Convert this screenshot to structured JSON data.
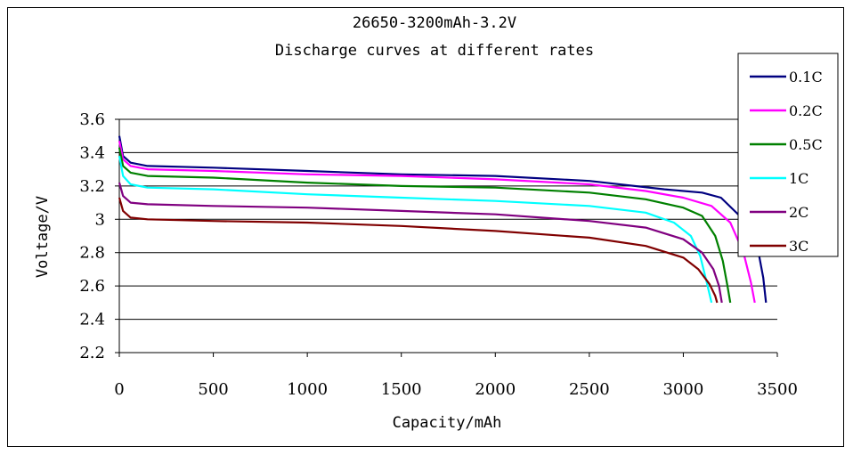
{
  "chart_data": {
    "type": "line",
    "title": "26650-3200mAh-3.2V",
    "subtitle": "Discharge curves at different rates",
    "xlabel": "Capacity/mAh",
    "ylabel": "Voltage/V",
    "xlim": [
      0,
      3500
    ],
    "ylim": [
      2.2,
      3.6
    ],
    "xticks": [
      0,
      500,
      1000,
      1500,
      2000,
      2500,
      3000,
      3500
    ],
    "yticks": [
      "2.2",
      "2.4",
      "2.6",
      "2.8",
      "3",
      "3.2",
      "3.4",
      "3.6"
    ],
    "grid": "horizontal",
    "legend_position": "right",
    "series": [
      {
        "name": "0.1C",
        "color": "#000080",
        "points": [
          [
            0,
            3.5
          ],
          [
            20,
            3.38
          ],
          [
            60,
            3.34
          ],
          [
            150,
            3.32
          ],
          [
            500,
            3.31
          ],
          [
            1000,
            3.29
          ],
          [
            1500,
            3.27
          ],
          [
            2000,
            3.26
          ],
          [
            2500,
            3.23
          ],
          [
            2900,
            3.18
          ],
          [
            3100,
            3.16
          ],
          [
            3200,
            3.13
          ],
          [
            3300,
            3.02
          ],
          [
            3350,
            2.93
          ],
          [
            3400,
            2.8
          ],
          [
            3425,
            2.65
          ],
          [
            3440,
            2.5
          ]
        ]
      },
      {
        "name": "0.2C",
        "color": "#FF00FF",
        "points": [
          [
            0,
            3.47
          ],
          [
            20,
            3.36
          ],
          [
            60,
            3.32
          ],
          [
            150,
            3.3
          ],
          [
            500,
            3.29
          ],
          [
            1000,
            3.27
          ],
          [
            1500,
            3.26
          ],
          [
            2000,
            3.24
          ],
          [
            2500,
            3.21
          ],
          [
            2800,
            3.17
          ],
          [
            3000,
            3.13
          ],
          [
            3150,
            3.08
          ],
          [
            3250,
            2.98
          ],
          [
            3320,
            2.8
          ],
          [
            3360,
            2.62
          ],
          [
            3380,
            2.5
          ]
        ]
      },
      {
        "name": "0.5C",
        "color": "#008000",
        "points": [
          [
            0,
            3.43
          ],
          [
            20,
            3.32
          ],
          [
            60,
            3.28
          ],
          [
            150,
            3.26
          ],
          [
            500,
            3.25
          ],
          [
            1000,
            3.22
          ],
          [
            1500,
            3.2
          ],
          [
            2000,
            3.19
          ],
          [
            2500,
            3.16
          ],
          [
            2800,
            3.12
          ],
          [
            3000,
            3.07
          ],
          [
            3100,
            3.02
          ],
          [
            3170,
            2.9
          ],
          [
            3210,
            2.75
          ],
          [
            3235,
            2.6
          ],
          [
            3250,
            2.5
          ]
        ]
      },
      {
        "name": "1C",
        "color": "#00FFFF",
        "points": [
          [
            0,
            3.38
          ],
          [
            20,
            3.26
          ],
          [
            60,
            3.21
          ],
          [
            150,
            3.19
          ],
          [
            500,
            3.18
          ],
          [
            1000,
            3.15
          ],
          [
            1500,
            3.13
          ],
          [
            2000,
            3.11
          ],
          [
            2500,
            3.08
          ],
          [
            2800,
            3.04
          ],
          [
            2950,
            2.98
          ],
          [
            3040,
            2.9
          ],
          [
            3090,
            2.78
          ],
          [
            3125,
            2.62
          ],
          [
            3150,
            2.5
          ]
        ]
      },
      {
        "name": "2C",
        "color": "#800080",
        "points": [
          [
            0,
            3.22
          ],
          [
            20,
            3.14
          ],
          [
            60,
            3.1
          ],
          [
            150,
            3.09
          ],
          [
            500,
            3.08
          ],
          [
            1000,
            3.07
          ],
          [
            1500,
            3.05
          ],
          [
            2000,
            3.03
          ],
          [
            2500,
            2.99
          ],
          [
            2800,
            2.95
          ],
          [
            3000,
            2.88
          ],
          [
            3100,
            2.8
          ],
          [
            3160,
            2.7
          ],
          [
            3190,
            2.6
          ],
          [
            3205,
            2.5
          ]
        ]
      },
      {
        "name": "3C",
        "color": "#800000",
        "points": [
          [
            0,
            3.13
          ],
          [
            20,
            3.05
          ],
          [
            60,
            3.01
          ],
          [
            150,
            3.0
          ],
          [
            500,
            2.99
          ],
          [
            1000,
            2.98
          ],
          [
            1500,
            2.96
          ],
          [
            2000,
            2.93
          ],
          [
            2500,
            2.89
          ],
          [
            2800,
            2.84
          ],
          [
            3000,
            2.77
          ],
          [
            3080,
            2.7
          ],
          [
            3140,
            2.61
          ],
          [
            3170,
            2.54
          ],
          [
            3180,
            2.5
          ]
        ]
      }
    ]
  }
}
